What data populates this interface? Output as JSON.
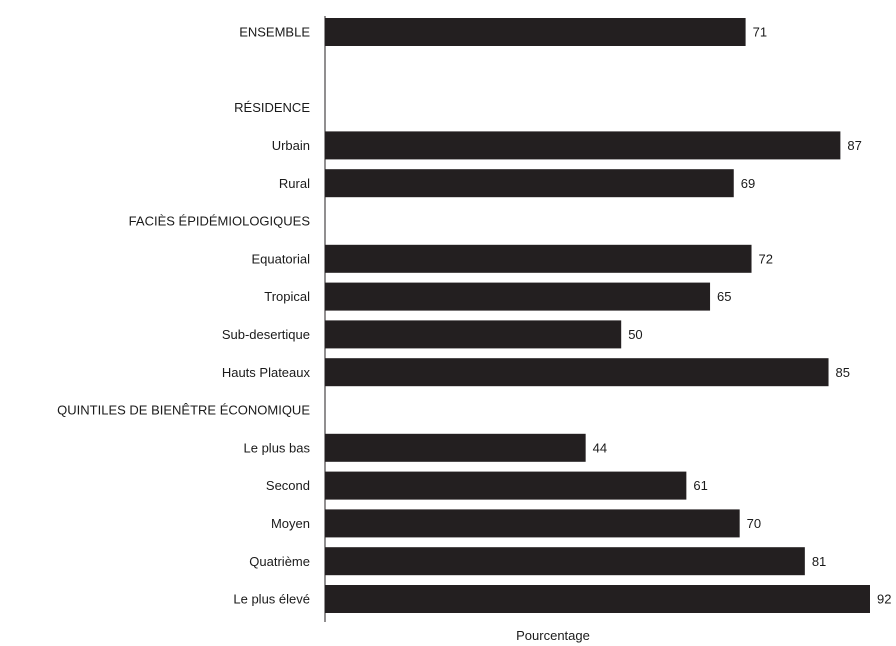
{
  "chart_data": {
    "type": "bar",
    "orientation": "horizontal",
    "xlabel": "Pourcentage",
    "xlim": [
      0,
      92
    ],
    "grid": false,
    "bar_color": "#231f20",
    "rows": [
      {
        "label": "ENSEMBLE",
        "value": 71,
        "kind": "bar"
      },
      {
        "label": "",
        "kind": "spacer"
      },
      {
        "label": "RÉSIDENCE",
        "kind": "header"
      },
      {
        "label": "Urbain",
        "value": 87,
        "kind": "bar"
      },
      {
        "label": "Rural",
        "value": 69,
        "kind": "bar"
      },
      {
        "label": "FACIÈS ÉPIDÉMIOLOGIQUES",
        "kind": "header"
      },
      {
        "label": "Equatorial",
        "value": 72,
        "kind": "bar"
      },
      {
        "label": "Tropical",
        "value": 65,
        "kind": "bar"
      },
      {
        "label": "Sub-desertique",
        "value": 50,
        "kind": "bar"
      },
      {
        "label": "Hauts Plateaux",
        "value": 85,
        "kind": "bar"
      },
      {
        "label": "QUINTILES DE BIENÊTRE ÉCONOMIQUE",
        "kind": "header"
      },
      {
        "label": "Le plus bas",
        "value": 44,
        "kind": "bar"
      },
      {
        "label": "Second",
        "value": 61,
        "kind": "bar"
      },
      {
        "label": "Moyen",
        "value": 70,
        "kind": "bar"
      },
      {
        "label": "Quatrième",
        "value": 81,
        "kind": "bar"
      },
      {
        "label": "Le plus élevé",
        "value": 92,
        "kind": "bar"
      }
    ]
  }
}
